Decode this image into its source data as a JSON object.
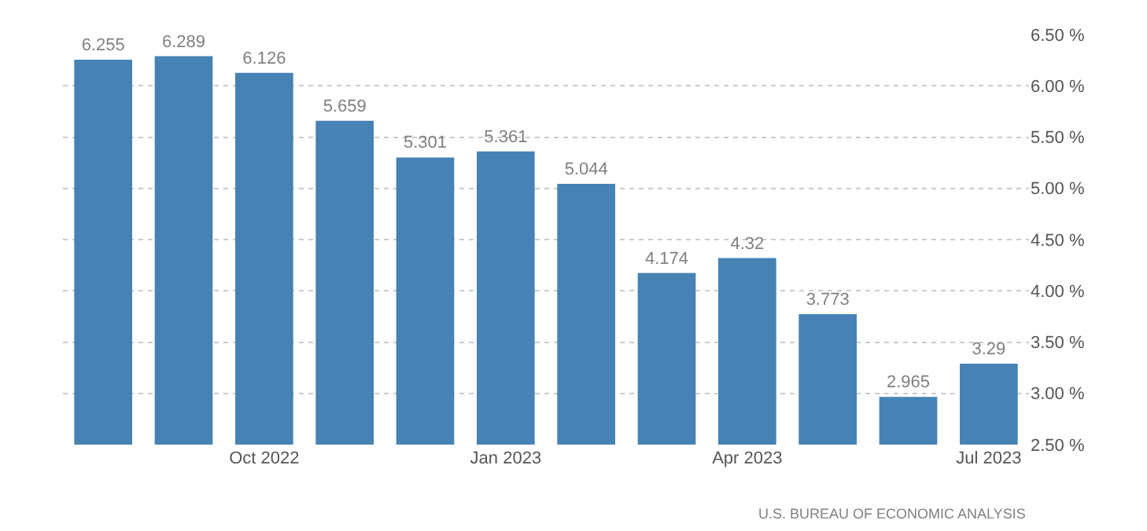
{
  "chart_data": {
    "type": "bar",
    "categories": [
      null,
      null,
      "Oct 2022",
      null,
      null,
      "Jan 2023",
      null,
      null,
      "Apr 2023",
      null,
      null,
      "Jul 2023"
    ],
    "values": [
      6.255,
      6.289,
      6.126,
      5.659,
      5.301,
      5.361,
      5.044,
      4.174,
      4.32,
      3.773,
      2.965,
      3.29
    ],
    "color": "#4682b4",
    "data_labels": true,
    "ylim": [
      2.5,
      6.5
    ],
    "yticks": [
      {
        "value": 2.5,
        "label": "2.50 %"
      },
      {
        "value": 3.0,
        "label": "3.00 %"
      },
      {
        "value": 3.5,
        "label": "3.50 %"
      },
      {
        "value": 4.0,
        "label": "4.00 %"
      },
      {
        "value": 4.5,
        "label": "4.50 %"
      },
      {
        "value": 5.0,
        "label": "5.00 %"
      },
      {
        "value": 5.5,
        "label": "5.50 %"
      },
      {
        "value": 6.0,
        "label": "6.00 %"
      },
      {
        "value": 6.5,
        "label": "6.50 %"
      }
    ],
    "grid": "y",
    "annotations": [
      "U.S. BUREAU OF ECONOMIC ANALYSIS"
    ]
  }
}
